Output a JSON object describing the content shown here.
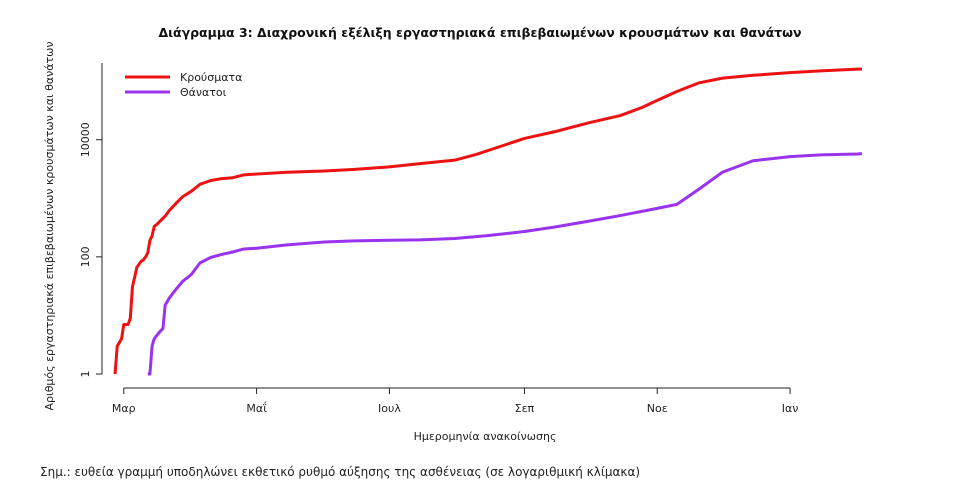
{
  "chart_data": {
    "type": "line",
    "title": "Διάγραμμα 3: Διαχρονική εξέλιξη εργαστηριακά επιβεβαιωμένων κρουσμάτων και θανάτων",
    "xlabel": "Ημερομηνία ανακοίνωσης",
    "ylabel": "Αριθμός εργαστηριακά επιβεβαιωμένων κρουσμάτων και θανάτων",
    "y_scale": "log",
    "ylim": [
      1,
      200000
    ],
    "yticks": [
      1,
      100,
      10000
    ],
    "ytick_labels": [
      "1",
      "100",
      "10000"
    ],
    "xlim": [
      "2020-02-20",
      "2021-02-09"
    ],
    "xticks": [
      "2020-03-01",
      "2020-05-01",
      "2020-07-01",
      "2020-09-01",
      "2020-11-01",
      "2021-01-01"
    ],
    "xtick_labels": [
      "Μαρ",
      "Μαΐ",
      "Ιουλ",
      "Σεπ",
      "Νοε",
      "Ιαν"
    ],
    "legend_position": "top-left",
    "grid": false,
    "series": [
      {
        "name": "Κρούσματα",
        "color": "#ee1111",
        "points": [
          [
            "2020-02-26",
            1
          ],
          [
            "2020-02-27",
            3
          ],
          [
            "2020-02-29",
            4
          ],
          [
            "2020-03-01",
            7
          ],
          [
            "2020-03-03",
            7
          ],
          [
            "2020-03-04",
            9
          ],
          [
            "2020-03-05",
            31
          ],
          [
            "2020-03-06",
            45
          ],
          [
            "2020-03-07",
            66
          ],
          [
            "2020-03-09",
            84
          ],
          [
            "2020-03-10",
            89
          ],
          [
            "2020-03-11",
            99
          ],
          [
            "2020-03-12",
            117
          ],
          [
            "2020-03-13",
            190
          ],
          [
            "2020-03-14",
            228
          ],
          [
            "2020-03-15",
            331
          ],
          [
            "2020-03-16",
            352
          ],
          [
            "2020-03-18",
            418
          ],
          [
            "2020-03-20",
            495
          ],
          [
            "2020-03-22",
            624
          ],
          [
            "2020-03-25",
            821
          ],
          [
            "2020-03-28",
            1061
          ],
          [
            "2020-04-01",
            1314
          ],
          [
            "2020-04-05",
            1735
          ],
          [
            "2020-04-10",
            2011
          ],
          [
            "2020-04-15",
            2170
          ],
          [
            "2020-04-20",
            2245
          ],
          [
            "2020-04-25",
            2506
          ],
          [
            "2020-05-01",
            2591
          ],
          [
            "2020-05-15",
            2788
          ],
          [
            "2020-06-01",
            2917
          ],
          [
            "2020-06-15",
            3121
          ],
          [
            "2020-07-01",
            3432
          ],
          [
            "2020-07-15",
            3910
          ],
          [
            "2020-07-31",
            4477
          ],
          [
            "2020-08-10",
            5623
          ],
          [
            "2020-08-20",
            7472
          ],
          [
            "2020-09-01",
            10524
          ],
          [
            "2020-09-15",
            13730
          ],
          [
            "2020-10-01",
            19613
          ],
          [
            "2020-10-15",
            25802
          ],
          [
            "2020-10-25",
            35510
          ],
          [
            "2020-11-01",
            46892
          ],
          [
            "2020-11-10",
            66637
          ],
          [
            "2020-11-20",
            93066
          ],
          [
            "2020-12-01",
            112450
          ],
          [
            "2020-12-15",
            125927
          ],
          [
            "2021-01-01",
            139447
          ],
          [
            "2021-01-15",
            149973
          ],
          [
            "2021-02-01",
            160000
          ],
          [
            "2021-02-03",
            160000
          ]
        ]
      },
      {
        "name": "Θάνατοι",
        "color": "#9933ee",
        "points": [
          [
            "2020-03-12",
            1
          ],
          [
            "2020-03-13",
            1
          ],
          [
            "2020-03-14",
            3
          ],
          [
            "2020-03-15",
            4
          ],
          [
            "2020-03-17",
            5
          ],
          [
            "2020-03-19",
            6
          ],
          [
            "2020-03-20",
            15
          ],
          [
            "2020-03-22",
            20
          ],
          [
            "2020-03-25",
            28
          ],
          [
            "2020-03-28",
            38
          ],
          [
            "2020-04-01",
            50
          ],
          [
            "2020-04-05",
            79
          ],
          [
            "2020-04-10",
            98
          ],
          [
            "2020-04-15",
            110
          ],
          [
            "2020-04-20",
            121
          ],
          [
            "2020-04-25",
            136
          ],
          [
            "2020-05-01",
            140
          ],
          [
            "2020-05-15",
            160
          ],
          [
            "2020-06-01",
            179
          ],
          [
            "2020-06-15",
            187
          ],
          [
            "2020-07-01",
            192
          ],
          [
            "2020-07-15",
            195
          ],
          [
            "2020-07-31",
            206
          ],
          [
            "2020-08-15",
            230
          ],
          [
            "2020-09-01",
            271
          ],
          [
            "2020-09-15",
            323
          ],
          [
            "2020-10-01",
            409
          ],
          [
            "2020-10-15",
            507
          ],
          [
            "2020-11-01",
            673
          ],
          [
            "2020-11-10",
            786
          ],
          [
            "2020-11-20",
            1419
          ],
          [
            "2020-12-01",
            2797
          ],
          [
            "2020-12-15",
            4374
          ],
          [
            "2021-01-01",
            5146
          ],
          [
            "2021-01-15",
            5497
          ],
          [
            "2021-02-01",
            5700
          ],
          [
            "2021-02-03",
            5800
          ]
        ]
      }
    ]
  },
  "footnote": "Σημ.: ευθεία γραμμή υποδηλώνει εκθετικό ρυθμό αύξησης της ασθένειας (σε λογαριθμική κλίμακα)"
}
